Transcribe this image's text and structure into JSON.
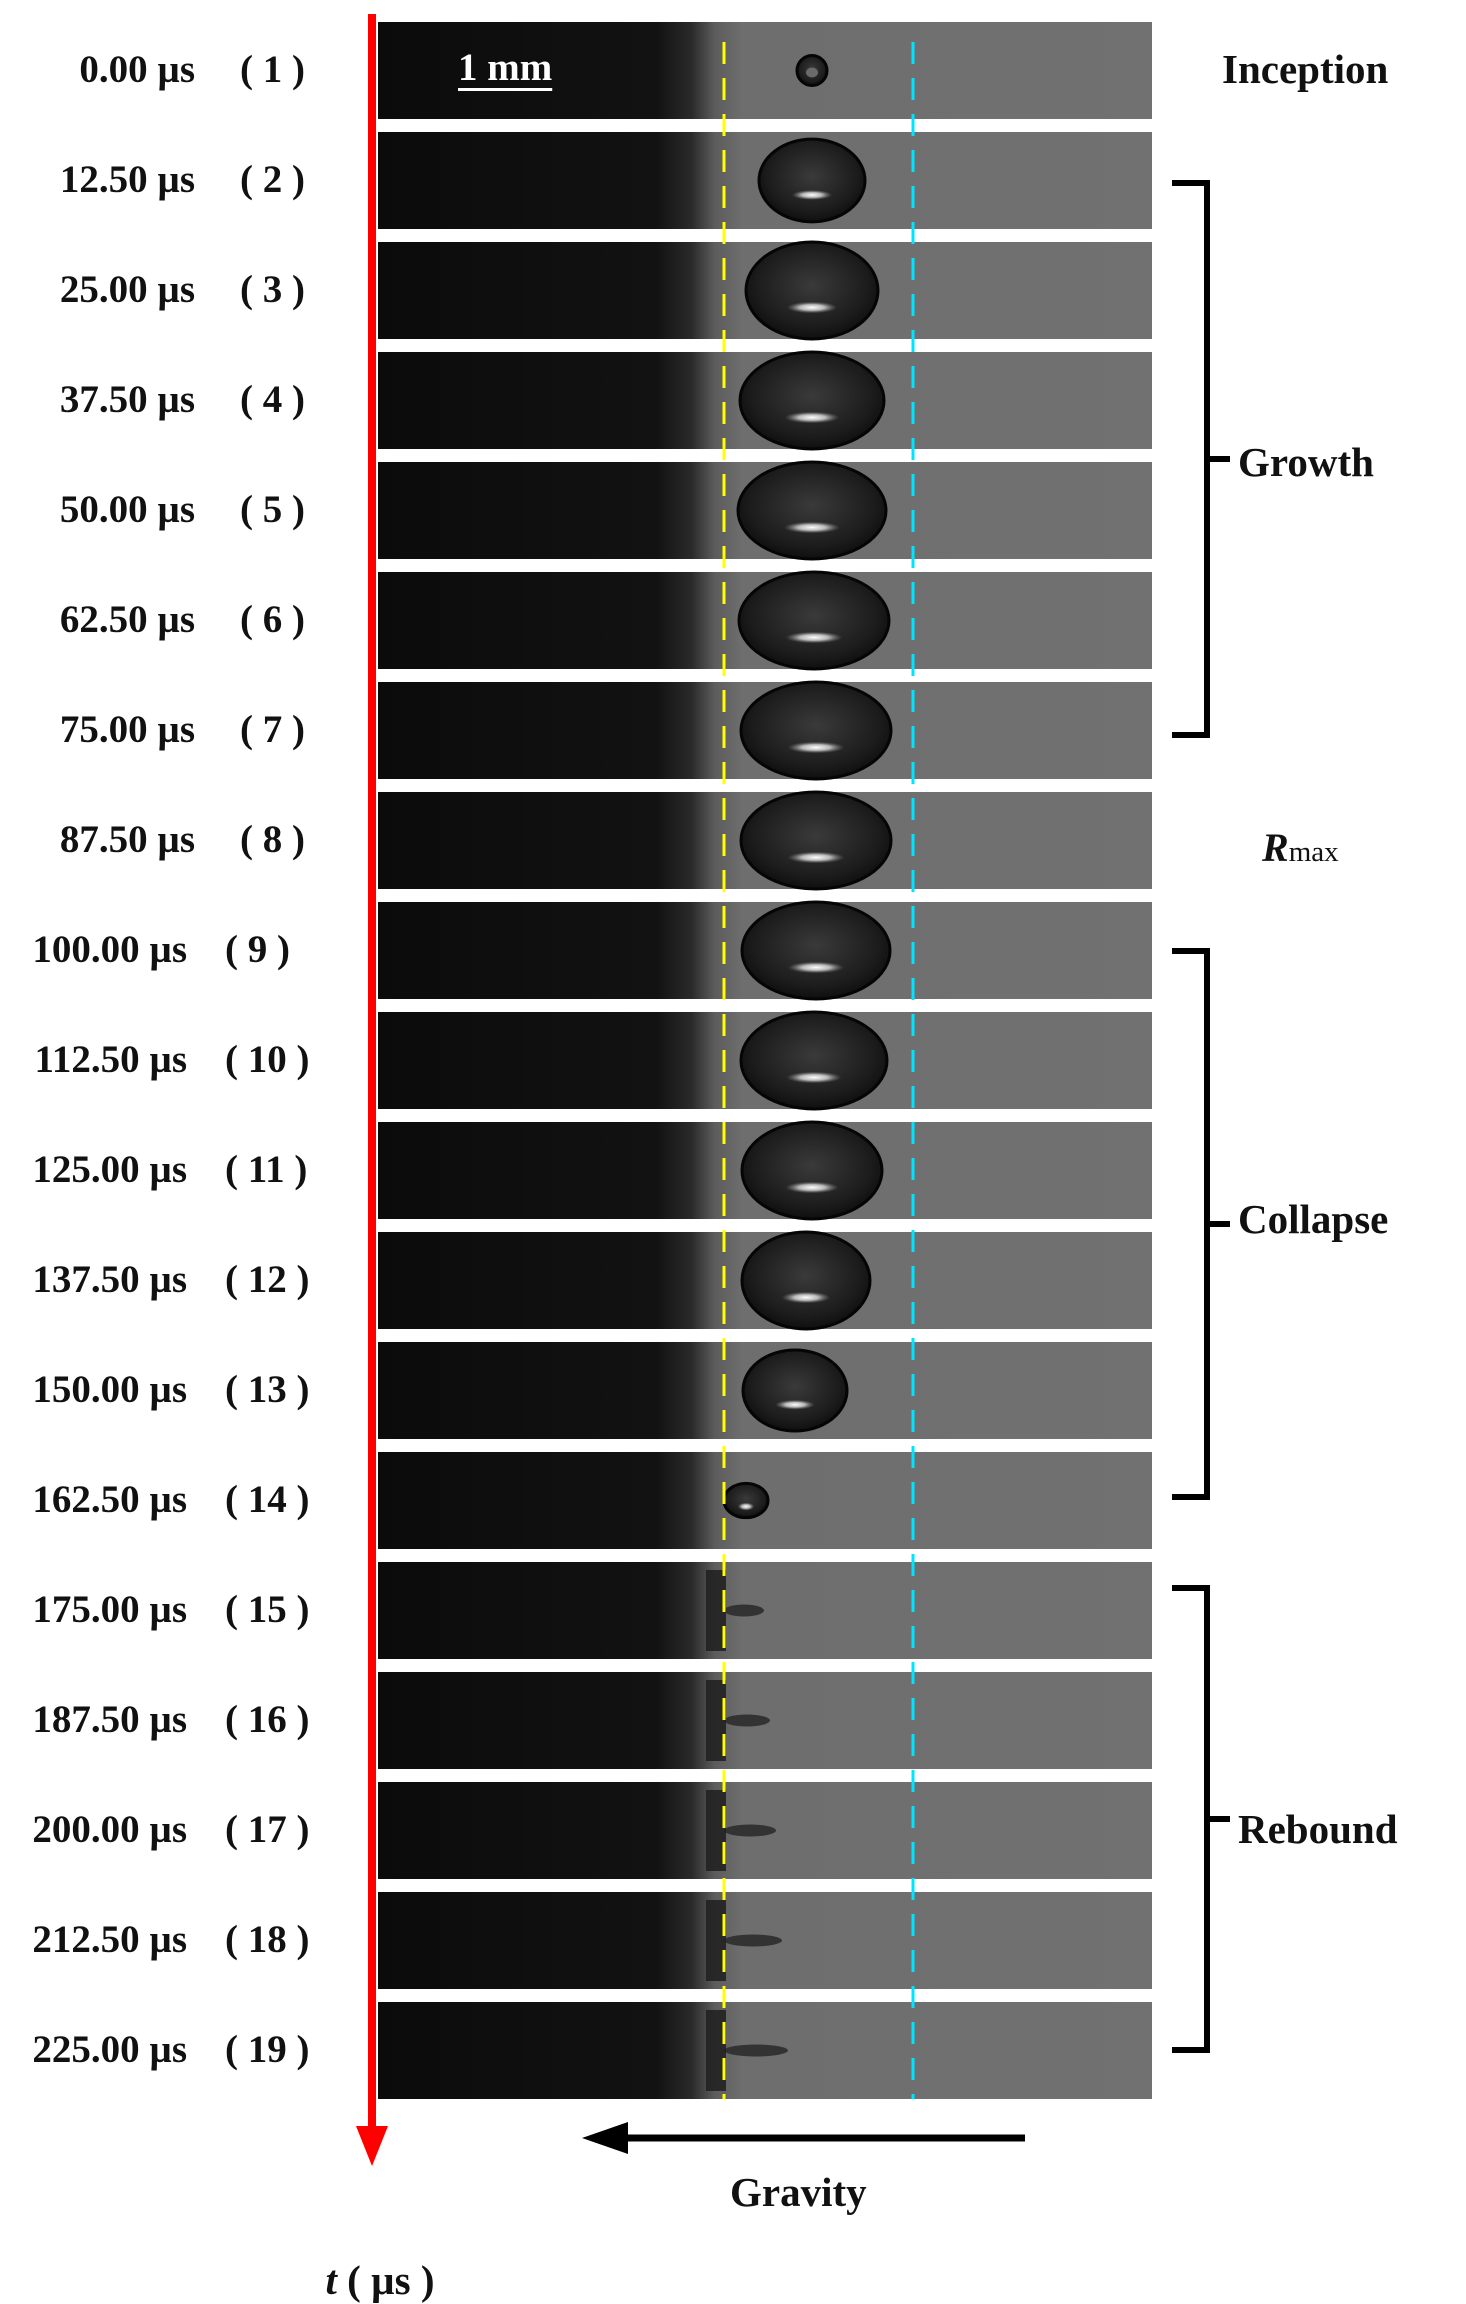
{
  "frames": [
    {
      "time": "0.00 µs",
      "index": "( 1 )"
    },
    {
      "time": "12.50 µs",
      "index": "( 2 )"
    },
    {
      "time": "25.00 µs",
      "index": "( 3 )"
    },
    {
      "time": "37.50 µs",
      "index": "( 4 )"
    },
    {
      "time": "50.00 µs",
      "index": "( 5 )"
    },
    {
      "time": "62.50 µs",
      "index": "( 6 )"
    },
    {
      "time": "75.00 µs",
      "index": "( 7 )"
    },
    {
      "time": "87.50 µs",
      "index": "( 8 )"
    },
    {
      "time": "100.00 µs",
      "index": "( 9 )"
    },
    {
      "time": "112.50 µs",
      "index": "( 10 )"
    },
    {
      "time": "125.00 µs",
      "index": "( 11 )"
    },
    {
      "time": "137.50 µs",
      "index": "( 12 )"
    },
    {
      "time": "150.00 µs",
      "index": "( 13 )"
    },
    {
      "time": "162.50 µs",
      "index": "( 14 )"
    },
    {
      "time": "175.00 µs",
      "index": "( 15 )"
    },
    {
      "time": "187.50 µs",
      "index": "( 16 )"
    },
    {
      "time": "200.00 µs",
      "index": "( 17 )"
    },
    {
      "time": "212.50 µs",
      "index": "( 18 )"
    },
    {
      "time": "225.00 µs",
      "index": "( 19 )"
    }
  ],
  "phases": {
    "inception": "Inception",
    "growth": "Growth",
    "rmax_symbol": "R",
    "rmax_subscript": "max",
    "collapse": "Collapse",
    "rebound": "Rebound"
  },
  "scale_bar": "1 mm",
  "time_axis": {
    "var": "t",
    "unit": " ( µs )"
  },
  "gravity_label": "Gravity",
  "colors": {
    "time_axis": "#ff0000",
    "left_guide": "#ffff00",
    "right_guide": "#00e5ff",
    "background_dark": "#0d0d0d",
    "background_liquid": "#6f6f6f"
  }
}
